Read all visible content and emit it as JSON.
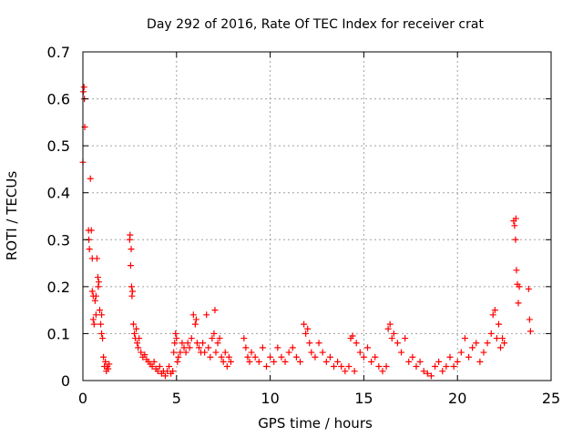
{
  "chart_data": {
    "type": "scatter",
    "title": "Day 292 of 2016, Rate Of TEC Index for receiver crat",
    "xlabel": "GPS time / hours",
    "ylabel": "ROTI / TECUs",
    "xlim": [
      0,
      25
    ],
    "ylim": [
      0,
      0.7
    ],
    "xticks": [
      0,
      5,
      10,
      15,
      20,
      25
    ],
    "yticks": [
      0,
      0.1,
      0.2,
      0.3,
      0.4,
      0.5,
      0.6,
      0.7
    ],
    "xtick_labels": [
      "0",
      "5",
      "10",
      "15",
      "20",
      "25"
    ],
    "ytick_labels": [
      "0",
      "0.1",
      "0.2",
      "0.3",
      "0.4",
      "0.5",
      "0.6",
      "0.7"
    ],
    "grid": true,
    "marker": "+",
    "color": "#ff0000",
    "series": [
      {
        "points": [
          [
            0.0,
            0.465
          ],
          [
            0.03,
            0.615
          ],
          [
            0.06,
            0.625
          ],
          [
            0.08,
            0.6
          ],
          [
            0.1,
            0.54
          ],
          [
            0.3,
            0.32
          ],
          [
            0.32,
            0.3
          ],
          [
            0.35,
            0.28
          ],
          [
            0.4,
            0.43
          ],
          [
            0.45,
            0.32
          ],
          [
            0.5,
            0.26
          ],
          [
            0.5,
            0.19
          ],
          [
            0.55,
            0.18
          ],
          [
            0.55,
            0.13
          ],
          [
            0.6,
            0.12
          ],
          [
            0.65,
            0.17
          ],
          [
            0.7,
            0.18
          ],
          [
            0.7,
            0.14
          ],
          [
            0.75,
            0.26
          ],
          [
            0.8,
            0.22
          ],
          [
            0.82,
            0.2
          ],
          [
            0.85,
            0.21
          ],
          [
            0.9,
            0.15
          ],
          [
            0.95,
            0.12
          ],
          [
            1.0,
            0.14
          ],
          [
            1.0,
            0.1
          ],
          [
            1.05,
            0.09
          ],
          [
            1.1,
            0.05
          ],
          [
            1.15,
            0.03
          ],
          [
            1.2,
            0.04
          ],
          [
            1.25,
            0.02
          ],
          [
            1.3,
            0.03
          ],
          [
            1.35,
            0.025
          ],
          [
            1.4,
            0.035
          ],
          [
            2.5,
            0.3
          ],
          [
            2.52,
            0.31
          ],
          [
            2.55,
            0.245
          ],
          [
            2.58,
            0.28
          ],
          [
            2.6,
            0.2
          ],
          [
            2.62,
            0.18
          ],
          [
            2.65,
            0.19
          ],
          [
            2.7,
            0.12
          ],
          [
            2.75,
            0.1
          ],
          [
            2.8,
            0.09
          ],
          [
            2.85,
            0.11
          ],
          [
            2.9,
            0.08
          ],
          [
            2.95,
            0.07
          ],
          [
            3.0,
            0.09
          ],
          [
            3.1,
            0.06
          ],
          [
            3.2,
            0.05
          ],
          [
            3.3,
            0.055
          ],
          [
            3.4,
            0.045
          ],
          [
            3.5,
            0.04
          ],
          [
            3.6,
            0.035
          ],
          [
            3.7,
            0.03
          ],
          [
            3.8,
            0.04
          ],
          [
            3.9,
            0.025
          ],
          [
            4.0,
            0.02
          ],
          [
            4.1,
            0.03
          ],
          [
            4.2,
            0.015
          ],
          [
            4.3,
            0.02
          ],
          [
            4.4,
            0.01
          ],
          [
            4.5,
            0.02
          ],
          [
            4.6,
            0.03
          ],
          [
            4.7,
            0.015
          ],
          [
            4.8,
            0.02
          ],
          [
            4.85,
            0.06
          ],
          [
            4.9,
            0.08
          ],
          [
            4.95,
            0.1
          ],
          [
            5.0,
            0.09
          ],
          [
            5.05,
            0.04
          ],
          [
            5.1,
            0.05
          ],
          [
            5.2,
            0.06
          ],
          [
            5.3,
            0.08
          ],
          [
            5.4,
            0.07
          ],
          [
            5.5,
            0.06
          ],
          [
            5.6,
            0.08
          ],
          [
            5.7,
            0.07
          ],
          [
            5.8,
            0.09
          ],
          [
            5.9,
            0.14
          ],
          [
            6.0,
            0.12
          ],
          [
            6.05,
            0.13
          ],
          [
            6.1,
            0.08
          ],
          [
            6.2,
            0.07
          ],
          [
            6.3,
            0.06
          ],
          [
            6.4,
            0.08
          ],
          [
            6.5,
            0.06
          ],
          [
            6.6,
            0.14
          ],
          [
            6.7,
            0.07
          ],
          [
            6.8,
            0.05
          ],
          [
            6.9,
            0.09
          ],
          [
            7.0,
            0.1
          ],
          [
            7.05,
            0.15
          ],
          [
            7.1,
            0.06
          ],
          [
            7.2,
            0.08
          ],
          [
            7.3,
            0.09
          ],
          [
            7.4,
            0.05
          ],
          [
            7.5,
            0.04
          ],
          [
            7.6,
            0.06
          ],
          [
            7.7,
            0.03
          ],
          [
            7.8,
            0.05
          ],
          [
            7.9,
            0.04
          ],
          [
            8.6,
            0.09
          ],
          [
            8.7,
            0.07
          ],
          [
            8.8,
            0.05
          ],
          [
            8.9,
            0.04
          ],
          [
            9.0,
            0.06
          ],
          [
            9.2,
            0.05
          ],
          [
            9.4,
            0.04
          ],
          [
            9.6,
            0.07
          ],
          [
            9.8,
            0.03
          ],
          [
            10.0,
            0.05
          ],
          [
            10.2,
            0.04
          ],
          [
            10.4,
            0.07
          ],
          [
            10.6,
            0.05
          ],
          [
            10.8,
            0.04
          ],
          [
            11.0,
            0.06
          ],
          [
            11.2,
            0.07
          ],
          [
            11.4,
            0.05
          ],
          [
            11.6,
            0.04
          ],
          [
            11.8,
            0.12
          ],
          [
            11.9,
            0.1
          ],
          [
            12.0,
            0.11
          ],
          [
            12.1,
            0.08
          ],
          [
            12.2,
            0.06
          ],
          [
            12.4,
            0.05
          ],
          [
            12.6,
            0.08
          ],
          [
            12.8,
            0.06
          ],
          [
            13.0,
            0.04
          ],
          [
            13.2,
            0.05
          ],
          [
            13.4,
            0.03
          ],
          [
            13.6,
            0.04
          ],
          [
            13.8,
            0.03
          ],
          [
            14.0,
            0.02
          ],
          [
            14.2,
            0.03
          ],
          [
            14.3,
            0.09
          ],
          [
            14.4,
            0.095
          ],
          [
            14.5,
            0.02
          ],
          [
            14.6,
            0.08
          ],
          [
            14.8,
            0.06
          ],
          [
            15.0,
            0.05
          ],
          [
            15.2,
            0.07
          ],
          [
            15.4,
            0.04
          ],
          [
            15.6,
            0.05
          ],
          [
            15.8,
            0.03
          ],
          [
            16.0,
            0.02
          ],
          [
            16.2,
            0.03
          ],
          [
            16.3,
            0.11
          ],
          [
            16.4,
            0.12
          ],
          [
            16.5,
            0.09
          ],
          [
            16.6,
            0.1
          ],
          [
            16.8,
            0.08
          ],
          [
            17.0,
            0.06
          ],
          [
            17.2,
            0.09
          ],
          [
            17.4,
            0.04
          ],
          [
            17.6,
            0.05
          ],
          [
            17.8,
            0.03
          ],
          [
            18.0,
            0.04
          ],
          [
            18.2,
            0.02
          ],
          [
            18.4,
            0.015
          ],
          [
            18.6,
            0.01
          ],
          [
            18.8,
            0.03
          ],
          [
            19.0,
            0.04
          ],
          [
            19.2,
            0.02
          ],
          [
            19.4,
            0.03
          ],
          [
            19.6,
            0.05
          ],
          [
            19.8,
            0.03
          ],
          [
            20.0,
            0.04
          ],
          [
            20.2,
            0.06
          ],
          [
            20.4,
            0.09
          ],
          [
            20.6,
            0.05
          ],
          [
            20.8,
            0.07
          ],
          [
            21.0,
            0.08
          ],
          [
            21.2,
            0.04
          ],
          [
            21.4,
            0.06
          ],
          [
            21.6,
            0.08
          ],
          [
            21.8,
            0.1
          ],
          [
            21.9,
            0.14
          ],
          [
            22.0,
            0.15
          ],
          [
            22.1,
            0.09
          ],
          [
            22.2,
            0.12
          ],
          [
            22.3,
            0.07
          ],
          [
            22.4,
            0.09
          ],
          [
            22.5,
            0.08
          ],
          [
            23.0,
            0.34
          ],
          [
            23.05,
            0.33
          ],
          [
            23.1,
            0.3
          ],
          [
            23.12,
            0.345
          ],
          [
            23.15,
            0.235
          ],
          [
            23.2,
            0.205
          ],
          [
            23.25,
            0.165
          ],
          [
            23.3,
            0.2
          ],
          [
            23.8,
            0.195
          ],
          [
            23.85,
            0.13
          ],
          [
            23.9,
            0.105
          ]
        ]
      }
    ]
  }
}
